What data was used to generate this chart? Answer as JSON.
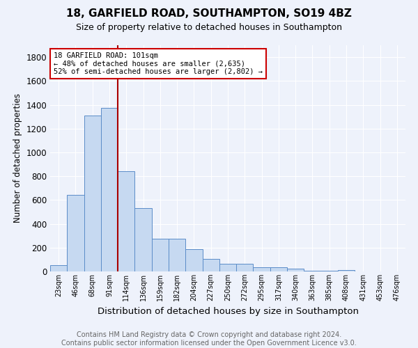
{
  "title": "18, GARFIELD ROAD, SOUTHAMPTON, SO19 4BZ",
  "subtitle": "Size of property relative to detached houses in Southampton",
  "xlabel": "Distribution of detached houses by size in Southampton",
  "ylabel": "Number of detached properties",
  "bar_labels": [
    "23sqm",
    "46sqm",
    "68sqm",
    "91sqm",
    "114sqm",
    "136sqm",
    "159sqm",
    "182sqm",
    "204sqm",
    "227sqm",
    "250sqm",
    "272sqm",
    "295sqm",
    "317sqm",
    "340sqm",
    "363sqm",
    "385sqm",
    "408sqm",
    "431sqm",
    "453sqm",
    "476sqm"
  ],
  "bar_values": [
    55,
    645,
    1310,
    1375,
    840,
    530,
    275,
    275,
    185,
    105,
    65,
    65,
    38,
    38,
    22,
    8,
    8,
    14,
    0,
    0,
    0
  ],
  "bar_color": "#c6d9f1",
  "bar_edgecolor": "#5b8cc8",
  "vline_x": 3.5,
  "vline_color": "#aa0000",
  "annotation_text": "18 GARFIELD ROAD: 101sqm\n← 48% of detached houses are smaller (2,635)\n52% of semi-detached houses are larger (2,802) →",
  "annotation_box_color": "#ffffff",
  "annotation_box_edgecolor": "#cc0000",
  "ylim": [
    0,
    1900
  ],
  "yticks": [
    0,
    200,
    400,
    600,
    800,
    1000,
    1200,
    1400,
    1600,
    1800
  ],
  "background_color": "#eef2fb",
  "grid_color": "#ffffff",
  "footer": "Contains HM Land Registry data © Crown copyright and database right 2024.\nContains public sector information licensed under the Open Government Licence v3.0.",
  "title_fontsize": 11,
  "subtitle_fontsize": 9,
  "xlabel_fontsize": 9.5,
  "ylabel_fontsize": 8.5,
  "footer_fontsize": 7,
  "ann_fontsize": 7.5
}
